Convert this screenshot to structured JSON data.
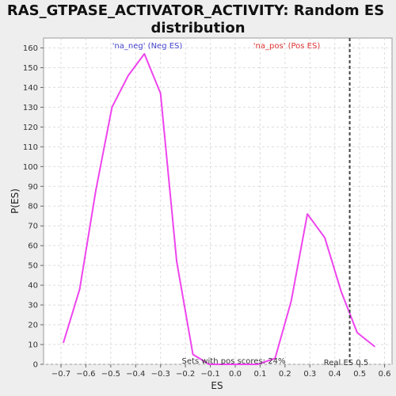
{
  "chart_data": {
    "type": "line",
    "title_line1": "RAS_GTPASE_ACTIVATOR_ACTIVITY: Random ES",
    "title_line2": "distribution",
    "xlabel": "ES",
    "ylabel": "P(ES)",
    "xlim": [
      -0.77,
      0.63
    ],
    "ylim": [
      0,
      165
    ],
    "xticks": [
      -0.7,
      -0.6,
      -0.5,
      -0.4,
      -0.3,
      -0.2,
      -0.1,
      0.0,
      0.1,
      0.2,
      0.3,
      0.4,
      0.5,
      0.6
    ],
    "xtick_labels": [
      "−0.7",
      "−0.6",
      "−0.5",
      "−0.4",
      "−0.3",
      "−0.2",
      "−0.1",
      "0.0",
      "0.1",
      "0.2",
      "0.3",
      "0.4",
      "0.5",
      "0.6"
    ],
    "yticks": [
      0,
      10,
      20,
      30,
      40,
      50,
      60,
      70,
      80,
      90,
      100,
      110,
      120,
      130,
      140,
      150,
      160
    ],
    "grid": true,
    "series": [
      {
        "color": "#ee44ee",
        "x": [
          -0.69,
          -0.625,
          -0.56,
          -0.495,
          -0.43,
          -0.365,
          -0.3,
          -0.235,
          -0.17,
          -0.105,
          -0.04,
          0.025,
          0.09,
          0.16,
          0.225,
          0.29,
          0.36,
          0.425,
          0.49,
          0.56
        ],
        "y": [
          11,
          38,
          88,
          130,
          146,
          157,
          137,
          52,
          5,
          0,
          0,
          0,
          0,
          3,
          32,
          76,
          64,
          37,
          16,
          9
        ]
      }
    ],
    "real_es": {
      "x": 0.46,
      "label": "Real ES 0.5",
      "color": "#444444"
    },
    "annotations": {
      "neg_label": "'na_neg' (Neg ES)",
      "neg_color": "#4444cc",
      "pos_label": "'na_pos' (Pos ES)",
      "pos_color": "#dd3333",
      "pos_scores_text": "Sets with pos scores: 24%"
    }
  }
}
